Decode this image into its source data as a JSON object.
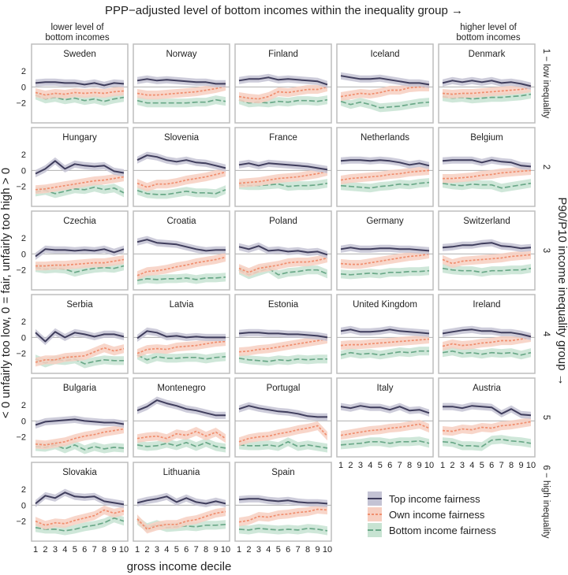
{
  "figure": {
    "top_title": "PPP−adjusted level of bottom incomes within the inequality group →",
    "left_label": "< 0 unfairly too low, 0 = fair, unfairly too high > 0",
    "right_label": "P90/P10 income inequality group →",
    "x_label": "gross income decile",
    "corner_left": [
      "lower level of",
      "bottom incomes"
    ],
    "corner_right": [
      "higher level of",
      "bottom incomes"
    ],
    "row_labels": [
      "1 − low inequality",
      "2",
      "3",
      "4",
      "5",
      "6 − high inequality"
    ]
  },
  "colors": {
    "top": "#3f3d5c",
    "top_band": "#c4c3d4",
    "own": "#f08e6e",
    "own_band": "#f7cfc1",
    "bottom": "#6aa888",
    "bottom_band": "#c7e3d2",
    "frame": "#bdbdbd",
    "zero": "#b0b0b0"
  },
  "chart_data": {
    "type": "line",
    "x": [
      1,
      2,
      3,
      4,
      5,
      6,
      7,
      8,
      9,
      10
    ],
    "ylim": [
      -4,
      3
    ],
    "yticks": [
      2,
      0,
      -2
    ],
    "xticks": [
      "1",
      "2",
      "3",
      "4",
      "5",
      "6",
      "7",
      "8",
      "9",
      "10"
    ],
    "legend": {
      "position": "bottom-right",
      "entries": [
        "Top income fairness",
        "Own income fairness",
        "Bottom income fairness"
      ]
    },
    "panels": [
      {
        "name": "Sweden",
        "row": 0,
        "col": 0,
        "top": [
          0.5,
          0.6,
          0.6,
          0.5,
          0.5,
          0.3,
          0.5,
          0.2,
          0.5,
          0.4
        ],
        "own": [
          -0.7,
          -1.0,
          -0.8,
          -0.9,
          -0.7,
          -0.8,
          -0.7,
          -0.8,
          -0.6,
          -0.5
        ],
        "bottom": [
          -1.0,
          -1.5,
          -1.3,
          -1.6,
          -1.4,
          -1.7,
          -1.5,
          -1.8,
          -1.5,
          -1.3
        ]
      },
      {
        "name": "Norway",
        "row": 0,
        "col": 1,
        "top": [
          0.8,
          1.0,
          0.8,
          0.9,
          0.8,
          0.7,
          0.6,
          0.6,
          0.4,
          0.4
        ],
        "own": [
          -0.8,
          -1.0,
          -1.0,
          -0.9,
          -0.8,
          -0.7,
          -0.6,
          -0.4,
          -0.2,
          0.1
        ],
        "bottom": [
          -1.7,
          -2.0,
          -2.0,
          -2.0,
          -2.0,
          -2.0,
          -1.9,
          -1.9,
          -1.6,
          -1.8
        ]
      },
      {
        "name": "Finland",
        "row": 0,
        "col": 2,
        "top": [
          0.8,
          1.0,
          1.0,
          1.2,
          0.9,
          1.0,
          0.9,
          0.8,
          0.7,
          0.3
        ],
        "own": [
          -1.2,
          -1.4,
          -1.5,
          -1.2,
          -0.6,
          -0.7,
          -0.5,
          -0.3,
          -0.3,
          0.0
        ],
        "bottom": [
          -1.6,
          -2.0,
          -1.9,
          -2.0,
          -1.8,
          -1.9,
          -1.7,
          -1.7,
          -1.8,
          -1.6
        ]
      },
      {
        "name": "Iceland",
        "row": 0,
        "col": 3,
        "top": [
          1.4,
          1.2,
          1.0,
          1.0,
          1.1,
          0.9,
          0.7,
          0.5,
          0.5,
          0.3
        ],
        "own": [
          -1.2,
          -1.0,
          -0.8,
          -0.9,
          -0.7,
          -0.4,
          -0.4,
          -0.1,
          0.0,
          0.0
        ],
        "bottom": [
          -1.8,
          -2.2,
          -1.9,
          -2.2,
          -2.6,
          -2.5,
          -2.4,
          -2.2,
          -2.0,
          -1.9
        ]
      },
      {
        "name": "Denmark",
        "row": 0,
        "col": 4,
        "top": [
          0.5,
          0.8,
          0.6,
          0.8,
          0.6,
          0.8,
          0.5,
          0.6,
          0.4,
          0.1
        ],
        "own": [
          -0.8,
          -0.9,
          -0.8,
          -0.8,
          -0.7,
          -0.6,
          -0.5,
          -0.4,
          -0.3,
          -0.1
        ],
        "bottom": [
          -1.2,
          -1.4,
          -1.3,
          -1.5,
          -1.4,
          -1.3,
          -1.3,
          -1.2,
          -1.1,
          -0.9
        ]
      },
      {
        "name": "Hungary",
        "row": 1,
        "col": 0,
        "top": [
          -0.4,
          0.2,
          1.2,
          0.2,
          0.8,
          0.6,
          0.5,
          0.6,
          -0.1,
          -0.3
        ],
        "own": [
          -2.4,
          -2.3,
          -2.1,
          -1.9,
          -1.7,
          -1.5,
          -1.3,
          -1.2,
          -1.0,
          -0.8
        ],
        "bottom": [
          -2.7,
          -2.5,
          -2.9,
          -2.6,
          -2.3,
          -2.4,
          -2.1,
          -2.4,
          -2.2,
          -2.8
        ]
      },
      {
        "name": "Slovenia",
        "row": 1,
        "col": 1,
        "top": [
          1.3,
          1.9,
          1.7,
          1.3,
          1.1,
          1.3,
          1.0,
          0.9,
          0.6,
          0.3
        ],
        "own": [
          -1.6,
          -2.1,
          -1.7,
          -1.7,
          -1.5,
          -1.2,
          -1.0,
          -0.8,
          -0.5,
          -0.2
        ],
        "bottom": [
          -2.5,
          -2.9,
          -3.0,
          -3.0,
          -2.8,
          -2.6,
          -2.8,
          -2.8,
          -2.9,
          -2.4
        ]
      },
      {
        "name": "France",
        "row": 1,
        "col": 2,
        "top": [
          0.7,
          0.9,
          0.6,
          0.9,
          0.8,
          0.7,
          0.6,
          0.5,
          0.3,
          0.1
        ],
        "own": [
          -1.6,
          -1.5,
          -1.4,
          -1.2,
          -1.0,
          -0.9,
          -0.8,
          -0.6,
          -0.4,
          -0.1
        ],
        "bottom": [
          -1.8,
          -1.9,
          -1.9,
          -1.8,
          -1.7,
          -2.0,
          -1.9,
          -1.9,
          -1.8,
          -1.6
        ]
      },
      {
        "name": "Netherlands",
        "row": 1,
        "col": 3,
        "top": [
          1.2,
          1.3,
          1.3,
          1.2,
          1.3,
          1.2,
          1.0,
          0.7,
          0.9,
          0.6
        ],
        "own": [
          -1.2,
          -1.0,
          -0.9,
          -0.8,
          -0.7,
          -0.5,
          -0.4,
          -0.2,
          -0.1,
          0.0
        ],
        "bottom": [
          -1.9,
          -2.0,
          -2.1,
          -2.2,
          -2.0,
          -1.9,
          -1.7,
          -1.8,
          -1.6,
          -1.5
        ]
      },
      {
        "name": "Belgium",
        "row": 1,
        "col": 4,
        "top": [
          1.2,
          1.3,
          1.3,
          1.3,
          1.0,
          1.3,
          1.1,
          1.0,
          0.6,
          0.5
        ],
        "own": [
          -1.0,
          -1.0,
          -0.9,
          -0.8,
          -0.6,
          -0.5,
          -0.3,
          -0.2,
          -0.1,
          0.0
        ],
        "bottom": [
          -1.6,
          -1.8,
          -1.9,
          -1.7,
          -1.8,
          -1.8,
          -2.2,
          -2.0,
          -1.8,
          -1.6
        ]
      },
      {
        "name": "Czechia",
        "row": 2,
        "col": 0,
        "top": [
          -0.3,
          0.6,
          0.5,
          0.5,
          0.4,
          0.5,
          0.4,
          0.6,
          0.2,
          0.6
        ],
        "own": [
          -1.5,
          -1.5,
          -1.4,
          -1.4,
          -1.3,
          -1.2,
          -1.1,
          -1.1,
          -0.9,
          -0.7
        ],
        "bottom": [
          -1.7,
          -1.9,
          -1.8,
          -1.9,
          -2.3,
          -2.0,
          -1.8,
          -1.7,
          -1.8,
          -1.5
        ]
      },
      {
        "name": "Croatia",
        "row": 2,
        "col": 1,
        "top": [
          1.5,
          1.8,
          1.4,
          1.3,
          1.2,
          0.9,
          0.6,
          0.4,
          0.5,
          0.5
        ],
        "own": [
          -2.7,
          -2.2,
          -2.1,
          -1.9,
          -1.6,
          -1.4,
          -1.1,
          -0.9,
          -0.7,
          -0.4
        ],
        "bottom": [
          -3.3,
          -3.1,
          -3.2,
          -3.1,
          -3.1,
          -3.0,
          -3.2,
          -3.0,
          -3.0,
          -2.9
        ]
      },
      {
        "name": "Poland",
        "row": 2,
        "col": 2,
        "top": [
          0.9,
          0.6,
          1.0,
          0.4,
          0.5,
          0.3,
          0.4,
          0.2,
          0.3,
          -0.1
        ],
        "own": [
          -1.8,
          -2.3,
          -1.8,
          -1.6,
          -1.4,
          -1.1,
          -1.0,
          -1.0,
          -0.8,
          -0.5
        ],
        "bottom": [
          -2.0,
          -2.6,
          -2.2,
          -1.8,
          -2.6,
          -2.3,
          -2.2,
          -2.0,
          -2.0,
          -2.5
        ]
      },
      {
        "name": "Germany",
        "row": 2,
        "col": 3,
        "top": [
          0.6,
          0.8,
          0.6,
          0.6,
          0.7,
          0.7,
          0.6,
          0.6,
          0.5,
          0.4
        ],
        "own": [
          -1.2,
          -1.3,
          -1.3,
          -1.1,
          -0.9,
          -0.7,
          -0.5,
          -0.3,
          -0.2,
          0.0
        ],
        "bottom": [
          -2.5,
          -2.6,
          -2.5,
          -2.4,
          -2.5,
          -2.3,
          -2.3,
          -2.2,
          -2.2,
          -2.1
        ]
      },
      {
        "name": "Switzerland",
        "row": 2,
        "col": 4,
        "top": [
          0.8,
          0.9,
          1.1,
          1.1,
          1.3,
          1.4,
          1.0,
          0.9,
          0.7,
          0.8
        ],
        "own": [
          -0.7,
          -1.2,
          -0.9,
          -0.8,
          -0.7,
          -0.6,
          -0.5,
          -0.3,
          -0.2,
          -0.1
        ],
        "bottom": [
          -1.8,
          -2.0,
          -2.1,
          -2.1,
          -2.3,
          -2.1,
          -2.1,
          -2.0,
          -2.0,
          -1.8
        ]
      },
      {
        "name": "Serbia",
        "row": 3,
        "col": 0,
        "top": [
          0.6,
          -0.5,
          0.7,
          0.0,
          0.6,
          0.4,
          0.1,
          0.4,
          0.4,
          0.1
        ],
        "own": [
          -3.1,
          -2.8,
          -2.8,
          -2.5,
          -2.4,
          -2.3,
          -1.8,
          -1.3,
          -1.7,
          -1.4
        ],
        "bottom": [
          -2.7,
          -3.2,
          -2.8,
          -2.9,
          -2.7,
          -3.3,
          -3.0,
          -2.8,
          -2.9,
          -2.9
        ]
      },
      {
        "name": "Latvia",
        "row": 3,
        "col": 1,
        "top": [
          -0.1,
          0.8,
          0.6,
          0.1,
          0.2,
          0.0,
          0.1,
          0.0,
          0.0,
          0.0
        ],
        "own": [
          -2.0,
          -1.5,
          -1.4,
          -1.5,
          -1.2,
          -1.1,
          -1.0,
          -0.8,
          -0.6,
          -0.5
        ],
        "bottom": [
          -2.2,
          -2.8,
          -2.4,
          -2.6,
          -2.6,
          -2.5,
          -2.5,
          -2.7,
          -2.5,
          -2.4
        ]
      },
      {
        "name": "Estonia",
        "row": 3,
        "col": 2,
        "top": [
          0.5,
          0.6,
          0.6,
          0.5,
          0.5,
          0.4,
          0.4,
          0.3,
          0.2,
          0.0
        ],
        "own": [
          -1.8,
          -1.7,
          -1.5,
          -1.4,
          -1.2,
          -1.0,
          -0.8,
          -0.6,
          -0.4,
          -0.2
        ],
        "bottom": [
          -2.6,
          -2.8,
          -2.9,
          -3.0,
          -2.8,
          -2.9,
          -2.7,
          -2.8,
          -2.7,
          -2.7
        ]
      },
      {
        "name": "United Kingdom",
        "row": 3,
        "col": 3,
        "top": [
          0.8,
          1.0,
          0.7,
          0.7,
          0.8,
          1.0,
          0.8,
          0.7,
          0.6,
          0.5
        ],
        "own": [
          -1.0,
          -0.9,
          -0.9,
          -0.8,
          -0.7,
          -0.6,
          -0.5,
          -0.4,
          -0.3,
          -0.2
        ],
        "bottom": [
          -2.2,
          -1.9,
          -2.1,
          -2.0,
          -2.2,
          -2.0,
          -1.8,
          -1.9,
          -1.7,
          -1.7
        ]
      },
      {
        "name": "Ireland",
        "row": 3,
        "col": 4,
        "top": [
          0.5,
          0.7,
          0.9,
          1.0,
          0.8,
          0.8,
          0.6,
          0.6,
          0.4,
          0.1
        ],
        "own": [
          -1.1,
          -0.8,
          -1.0,
          -0.9,
          -0.7,
          -0.6,
          -0.4,
          -0.4,
          -0.2,
          0.0
        ],
        "bottom": [
          -1.9,
          -1.7,
          -2.0,
          -1.9,
          -2.1,
          -1.9,
          -2.0,
          -1.9,
          -2.2,
          -1.9
        ]
      },
      {
        "name": "Bulgaria",
        "row": 4,
        "col": 0,
        "top": [
          -0.5,
          -0.1,
          0.0,
          0.1,
          0.2,
          0.0,
          -0.1,
          -0.2,
          -0.2,
          -0.4
        ],
        "own": [
          -2.9,
          -3.0,
          -2.8,
          -2.6,
          -2.2,
          -1.9,
          -1.7,
          -1.4,
          -1.2,
          -1.0
        ],
        "bottom": [
          -3.2,
          -3.3,
          -3.0,
          -3.5,
          -3.0,
          -3.6,
          -3.2,
          -3.5,
          -3.3,
          -3.4
        ]
      },
      {
        "name": "Montenegro",
        "row": 4,
        "col": 1,
        "top": [
          1.3,
          1.8,
          2.6,
          2.2,
          1.9,
          1.5,
          1.3,
          1.0,
          0.7,
          0.7
        ],
        "own": [
          -2.2,
          -2.0,
          -1.9,
          -2.2,
          -1.6,
          -1.8,
          -1.3,
          -1.9,
          -1.4,
          -2.2
        ],
        "bottom": [
          -3.0,
          -3.2,
          -3.1,
          -2.8,
          -3.1,
          -2.7,
          -3.2,
          -2.7,
          -3.2,
          -3.4
        ]
      },
      {
        "name": "Portugal",
        "row": 4,
        "col": 2,
        "top": [
          1.5,
          1.9,
          1.6,
          1.4,
          1.2,
          1.1,
          0.9,
          0.6,
          0.5,
          0.5
        ],
        "own": [
          -2.6,
          -2.2,
          -2.0,
          -1.9,
          -1.6,
          -1.4,
          -1.1,
          -0.9,
          -0.6,
          -1.9
        ],
        "bottom": [
          -3.0,
          -3.1,
          -3.1,
          -3.0,
          -3.2,
          -2.6,
          -3.2,
          -3.0,
          -3.2,
          -3.4
        ]
      },
      {
        "name": "Italy",
        "row": 4,
        "col": 3,
        "top": [
          1.8,
          1.6,
          1.9,
          1.7,
          1.7,
          1.4,
          1.8,
          1.3,
          1.4,
          1.0
        ],
        "own": [
          -1.8,
          -1.6,
          -1.4,
          -1.2,
          -1.1,
          -0.9,
          -0.8,
          -0.6,
          -0.4,
          -0.9
        ],
        "bottom": [
          -3.0,
          -2.9,
          -2.8,
          -2.6,
          -2.6,
          -2.8,
          -2.6,
          -2.6,
          -2.5,
          -2.8
        ]
      },
      {
        "name": "Austria",
        "row": 4,
        "col": 4,
        "top": [
          1.8,
          1.8,
          1.6,
          1.9,
          1.8,
          1.7,
          0.9,
          1.5,
          0.8,
          0.7
        ],
        "own": [
          -1.2,
          -1.3,
          -1.0,
          -1.1,
          -0.8,
          -0.9,
          -0.6,
          -0.5,
          -0.3,
          -0.1
        ],
        "bottom": [
          -2.6,
          -2.7,
          -3.1,
          -3.1,
          -3.2,
          -2.4,
          -2.3,
          -2.5,
          -2.6,
          -2.8
        ]
      },
      {
        "name": "Slovakia",
        "row": 5,
        "col": 0,
        "top": [
          0.2,
          1.2,
          0.9,
          1.6,
          1.1,
          1.0,
          1.1,
          0.5,
          0.3,
          0.1
        ],
        "own": [
          -2.0,
          -2.5,
          -2.2,
          -2.3,
          -1.9,
          -1.6,
          -1.3,
          -0.6,
          -1.0,
          -0.7
        ],
        "bottom": [
          -2.8,
          -3.0,
          -3.0,
          -3.2,
          -3.0,
          -2.7,
          -2.5,
          -2.2,
          -1.6,
          -2.0
        ]
      },
      {
        "name": "Lithuania",
        "row": 5,
        "col": 1,
        "top": [
          0.3,
          0.6,
          0.8,
          1.1,
          0.4,
          0.9,
          0.4,
          0.2,
          0.5,
          0.2
        ],
        "own": [
          -1.7,
          -3.0,
          -2.6,
          -2.4,
          -2.4,
          -2.0,
          -1.8,
          -1.4,
          -1.0,
          -0.8
        ],
        "bottom": [
          -1.9,
          -2.8,
          -2.4,
          -2.8,
          -2.7,
          -2.6,
          -2.7,
          -2.5,
          -2.5,
          -2.4
        ]
      },
      {
        "name": "Spain",
        "row": 5,
        "col": 2,
        "top": [
          0.7,
          0.8,
          0.8,
          0.6,
          0.5,
          0.6,
          0.4,
          0.3,
          0.3,
          0.2
        ],
        "own": [
          -2.1,
          -1.9,
          -1.4,
          -1.5,
          -1.2,
          -1.1,
          -0.9,
          -0.8,
          -0.5,
          -0.6
        ],
        "bottom": [
          -3.0,
          -3.1,
          -2.9,
          -3.0,
          -3.1,
          -3.0,
          -3.1,
          -2.9,
          -3.0,
          -3.2
        ]
      }
    ]
  }
}
